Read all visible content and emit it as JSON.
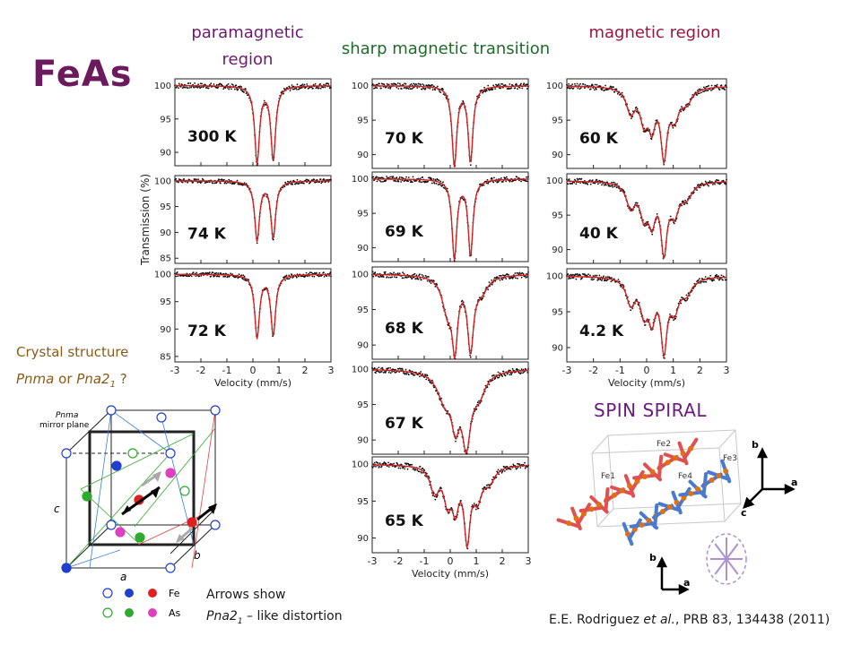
{
  "slide": {
    "title": "FeAs",
    "headers": {
      "paramagnetic": "paramagnetic region",
      "sharp": "sharp magnetic transition",
      "magnetic": "magnetic region"
    },
    "crystal_label": "Crystal structure",
    "crystal_opt1": "Pnma",
    "crystal_or": "or",
    "crystal_opt2": "Pna2",
    "crystal_opt2_sub": "1",
    "crystal_q": "?",
    "spin_label": "SPIN SPIRAL",
    "arrows_line1": "Arrows show",
    "arrows_line2_a": "Pna2",
    "arrows_line2_sub": "1",
    "arrows_line2_b": "– like distortion",
    "citation_a": "E.E. Rodriguez",
    "citation_etal": "et al.",
    "citation_b": ", PRB 83, 134438 (2011)"
  },
  "crystal_diagram": {
    "plane_label_1": "Pnma",
    "plane_label_2": "mirror plane",
    "axis_a": "a",
    "axis_b": "b",
    "axis_c": "c",
    "legend_fe": "Fe",
    "legend_as": "As"
  },
  "spin_diagram": {
    "fe_labels": [
      "Fe1",
      "Fe2",
      "Fe3",
      "Fe4"
    ],
    "axis_b": "b",
    "axis_a": "a",
    "axis_c": "c"
  },
  "chart_data": [
    {
      "type": "line",
      "title": "300 K",
      "ylabel": "Transmission (%)",
      "xlabel": "",
      "xlim": [
        -3,
        3
      ],
      "ylim": [
        88,
        101
      ],
      "yticks": [
        100,
        95,
        90
      ],
      "lineshape": "doublet",
      "xticks": []
    },
    {
      "type": "line",
      "title": "74 K",
      "ylabel": "Transmission (%)",
      "xlabel": "",
      "xlim": [
        -3,
        3
      ],
      "ylim": [
        84,
        101
      ],
      "yticks": [
        100,
        95,
        90,
        85
      ],
      "lineshape": "doublet",
      "xticks": []
    },
    {
      "type": "line",
      "title": "72 K",
      "ylabel": "Transmission (%)",
      "xlabel": "Velocity (mm/s)",
      "xlim": [
        -3,
        3
      ],
      "ylim": [
        84,
        101
      ],
      "yticks": [
        100,
        95,
        90,
        85
      ],
      "lineshape": "doublet",
      "xticks": [
        "-3",
        "-2",
        "-1",
        "0",
        "1",
        "2",
        "3"
      ]
    },
    {
      "type": "line",
      "title": "70 K",
      "ylabel": "",
      "xlabel": "",
      "xlim": [
        -3,
        3
      ],
      "ylim": [
        88,
        101
      ],
      "yticks": [
        100,
        95,
        90
      ],
      "lineshape": "doublet",
      "xticks": []
    },
    {
      "type": "line",
      "title": "69 K",
      "ylabel": "",
      "xlabel": "",
      "xlim": [
        -3,
        3
      ],
      "ylim": [
        88,
        101
      ],
      "yticks": [
        100,
        95,
        90
      ],
      "lineshape": "doublet",
      "xticks": []
    },
    {
      "type": "line",
      "title": "68 K",
      "ylabel": "",
      "xlabel": "",
      "xlim": [
        -3,
        3
      ],
      "ylim": [
        88,
        101
      ],
      "yticks": [
        100,
        95,
        90
      ],
      "lineshape": "transition",
      "xticks": []
    },
    {
      "type": "line",
      "title": "67 K",
      "ylabel": "",
      "xlabel": "",
      "xlim": [
        -3,
        3
      ],
      "ylim": [
        88,
        101
      ],
      "yticks": [
        100,
        95,
        90
      ],
      "lineshape": "broad",
      "xticks": []
    },
    {
      "type": "line",
      "title": "65 K",
      "ylabel": "",
      "xlabel": "Velocity (mm/s)",
      "xlim": [
        -3,
        3
      ],
      "ylim": [
        88,
        101
      ],
      "yticks": [
        100,
        95,
        90
      ],
      "lineshape": "magnetic",
      "xticks": [
        "-3",
        "-2",
        "-1",
        "0",
        "1",
        "2",
        "3"
      ]
    },
    {
      "type": "line",
      "title": "60 K",
      "ylabel": "",
      "xlabel": "",
      "xlim": [
        -3,
        3
      ],
      "ylim": [
        88,
        101
      ],
      "yticks": [
        100,
        95,
        90
      ],
      "lineshape": "magnetic",
      "xticks": []
    },
    {
      "type": "line",
      "title": "40 K",
      "ylabel": "",
      "xlabel": "",
      "xlim": [
        -3,
        3
      ],
      "ylim": [
        88,
        101
      ],
      "yticks": [
        100,
        95,
        90
      ],
      "lineshape": "magnetic",
      "xticks": []
    },
    {
      "type": "line",
      "title": "4.2 K",
      "ylabel": "",
      "xlabel": "Velocity (mm/s)",
      "xlim": [
        -3,
        3
      ],
      "ylim": [
        88,
        101
      ],
      "yticks": [
        100,
        95,
        90
      ],
      "lineshape": "magnetic",
      "xticks": [
        "-3",
        "-2",
        "-1",
        "0",
        "1",
        "2",
        "3"
      ]
    }
  ]
}
